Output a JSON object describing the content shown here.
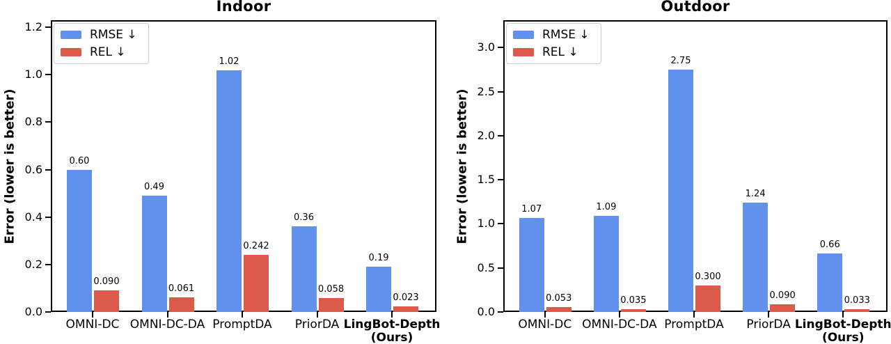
{
  "figure": {
    "background": "#ffffff"
  },
  "chart_data": [
    {
      "type": "bar",
      "title": "Indoor",
      "ylabel": "Error (lower is better)",
      "xlabel": "",
      "grid": false,
      "legend_position": "upper-left",
      "categories": [
        "OMNI-DC",
        "OMNI-DC-DA",
        "PromptDA",
        "PriorDA",
        "LingBot-Depth\n(Ours)"
      ],
      "category_bold": [
        false,
        false,
        false,
        false,
        true
      ],
      "series": [
        {
          "name": "RMSE ↓",
          "color": "#6191EC",
          "values": [
            0.6,
            0.49,
            1.02,
            0.36,
            0.19
          ],
          "labels": [
            "0.60",
            "0.49",
            "1.02",
            "0.36",
            "0.19"
          ]
        },
        {
          "name": "REL ↓",
          "color": "#DC5A4A",
          "values": [
            0.09,
            0.061,
            0.242,
            0.058,
            0.023
          ],
          "labels": [
            "0.090",
            "0.061",
            "0.242",
            "0.058",
            "0.023"
          ]
        }
      ],
      "ylim": [
        0,
        1.23
      ],
      "yticks": [
        {
          "value": 0.0,
          "label": "0.0"
        },
        {
          "value": 0.2,
          "label": "0.2"
        },
        {
          "value": 0.4,
          "label": "0.4"
        },
        {
          "value": 0.6,
          "label": "0.6"
        },
        {
          "value": 0.8,
          "label": "0.8"
        },
        {
          "value": 1.0,
          "label": "1.0"
        },
        {
          "value": 1.2,
          "label": "1.2"
        }
      ]
    },
    {
      "type": "bar",
      "title": "Outdoor",
      "ylabel": "Error (lower is better)",
      "xlabel": "",
      "grid": false,
      "legend_position": "upper-left",
      "categories": [
        "OMNI-DC",
        "OMNI-DC-DA",
        "PromptDA",
        "PriorDA",
        "LingBot-Depth\n(Ours)"
      ],
      "category_bold": [
        false,
        false,
        false,
        false,
        true
      ],
      "series": [
        {
          "name": "RMSE ↓",
          "color": "#6191EC",
          "values": [
            1.07,
            1.09,
            2.75,
            1.24,
            0.66
          ],
          "labels": [
            "1.07",
            "1.09",
            "2.75",
            "1.24",
            "0.66"
          ]
        },
        {
          "name": "REL ↓",
          "color": "#DC5A4A",
          "values": [
            0.053,
            0.035,
            0.3,
            0.09,
            0.033
          ],
          "labels": [
            "0.053",
            "0.035",
            "0.300",
            "0.090",
            "0.033"
          ]
        }
      ],
      "ylim": [
        0,
        3.31
      ],
      "yticks": [
        {
          "value": 0.0,
          "label": "0.0"
        },
        {
          "value": 0.5,
          "label": "0.5"
        },
        {
          "value": 1.0,
          "label": "1.0"
        },
        {
          "value": 1.5,
          "label": "1.5"
        },
        {
          "value": 2.0,
          "label": "2.0"
        },
        {
          "value": 2.5,
          "label": "2.5"
        },
        {
          "value": 3.0,
          "label": "3.0"
        }
      ]
    }
  ]
}
